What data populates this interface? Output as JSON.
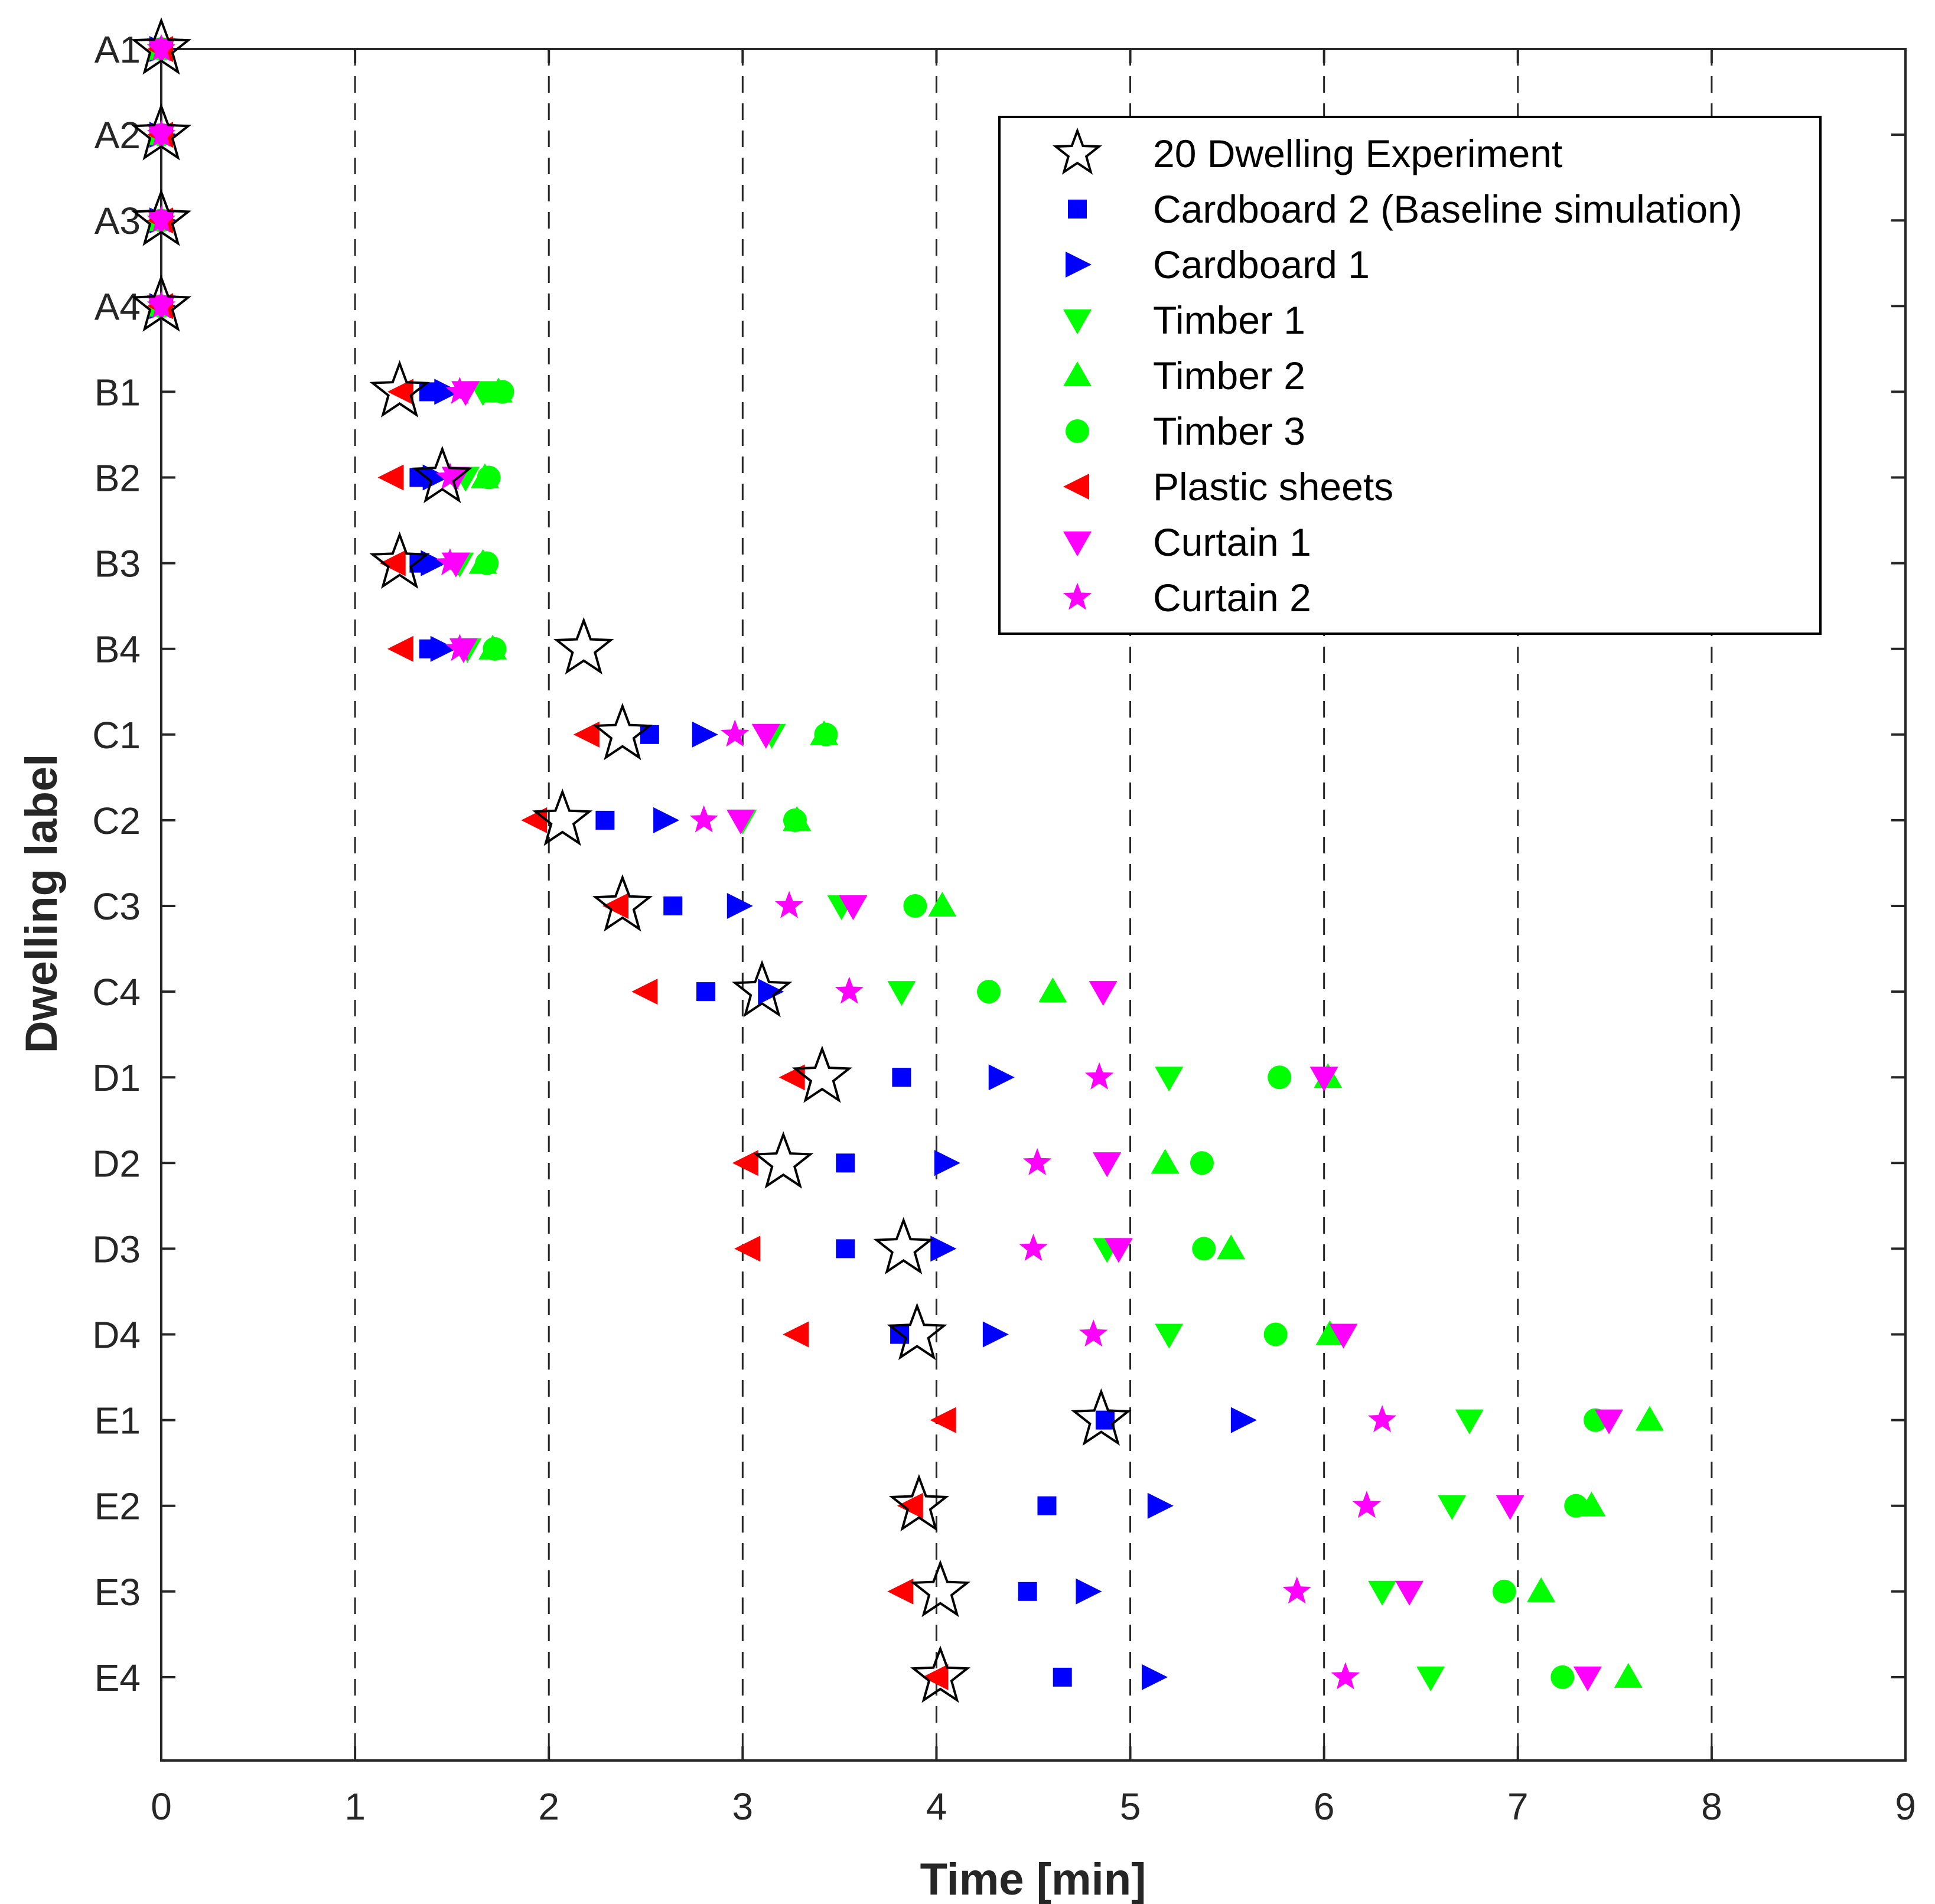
{
  "chart_data": {
    "type": "scatter",
    "xlabel": "Time [min]",
    "ylabel": "Dwelling label",
    "xlim": [
      0,
      9
    ],
    "x_ticks": [
      "0",
      "1",
      "2",
      "3",
      "4",
      "5",
      "6",
      "7",
      "8",
      "9"
    ],
    "categories": [
      "A1",
      "A2",
      "A3",
      "A4",
      "B1",
      "B2",
      "B3",
      "B4",
      "C1",
      "C2",
      "C3",
      "C4",
      "D1",
      "D2",
      "D3",
      "D4",
      "E1",
      "E2",
      "E3",
      "E4"
    ],
    "grid": "vertical dashed",
    "legend_position": "top-right",
    "series": [
      {
        "name": "20 Dwelling Experiment",
        "marker": "star-open",
        "color": "#000000",
        "values": [
          0,
          0,
          0,
          0,
          1.23,
          1.45,
          1.23,
          2.18,
          2.38,
          2.07,
          2.38,
          3.1,
          3.41,
          3.21,
          3.83,
          3.9,
          4.85,
          3.91,
          4.02,
          4.02
        ]
      },
      {
        "name": "Cardboard 2 (Baseline simulation)",
        "marker": "square",
        "color": "#0000ff",
        "values": [
          0,
          0,
          0,
          0,
          1.38,
          1.33,
          1.33,
          1.38,
          2.52,
          2.29,
          2.64,
          2.81,
          3.82,
          3.53,
          3.53,
          3.81,
          4.87,
          4.57,
          4.47,
          4.65
        ]
      },
      {
        "name": "Cardboard 1",
        "marker": "triangle-right",
        "color": "#0000ff",
        "values": [
          0,
          0,
          0,
          0,
          1.47,
          1.41,
          1.4,
          1.45,
          2.8,
          2.6,
          2.98,
          3.14,
          4.33,
          4.05,
          4.03,
          4.3,
          5.58,
          5.15,
          4.78,
          5.12
        ]
      },
      {
        "name": "Timber 1",
        "marker": "triangle-down",
        "color": "#00ff00",
        "values": [
          0,
          0,
          0,
          0,
          1.66,
          1.57,
          1.54,
          1.58,
          3.15,
          3.0,
          3.51,
          3.82,
          5.2,
          4.88,
          4.88,
          5.2,
          6.75,
          6.66,
          6.3,
          6.55
        ]
      },
      {
        "name": "Timber 2",
        "marker": "triangle-up",
        "color": "#00ff00",
        "values": [
          0,
          0,
          0,
          0,
          1.74,
          1.67,
          1.66,
          1.71,
          3.42,
          3.28,
          4.03,
          4.6,
          6.02,
          5.18,
          5.52,
          6.03,
          7.68,
          7.38,
          7.12,
          7.57
        ]
      },
      {
        "name": "Timber 3",
        "marker": "circle",
        "color": "#00ff00",
        "values": [
          0,
          0,
          0,
          0,
          1.76,
          1.69,
          1.68,
          1.72,
          3.43,
          3.27,
          3.89,
          4.27,
          5.77,
          5.37,
          5.38,
          5.75,
          7.4,
          7.3,
          6.93,
          7.23
        ]
      },
      {
        "name": "Plastic sheets",
        "marker": "triangle-left",
        "color": "#ff0000",
        "values": [
          0,
          0,
          0,
          0,
          1.24,
          1.19,
          1.2,
          1.24,
          2.2,
          1.93,
          2.35,
          2.5,
          3.26,
          3.02,
          3.03,
          3.28,
          4.04,
          3.87,
          3.82,
          4.0
        ]
      },
      {
        "name": "Curtain 1",
        "marker": "triangle-down",
        "color": "#ff00ff",
        "values": [
          0,
          0,
          0,
          0,
          1.57,
          1.52,
          1.52,
          1.56,
          3.12,
          2.99,
          3.57,
          4.86,
          6.0,
          4.88,
          4.94,
          6.1,
          7.47,
          6.96,
          6.44,
          7.36
        ]
      },
      {
        "name": "Curtain 2",
        "marker": "star-filled",
        "color": "#ff00ff",
        "values": [
          0,
          0,
          0,
          0,
          1.54,
          1.49,
          1.49,
          1.54,
          2.96,
          2.8,
          3.24,
          3.55,
          4.84,
          4.52,
          4.5,
          4.81,
          6.3,
          6.22,
          5.86,
          6.11
        ]
      }
    ]
  }
}
